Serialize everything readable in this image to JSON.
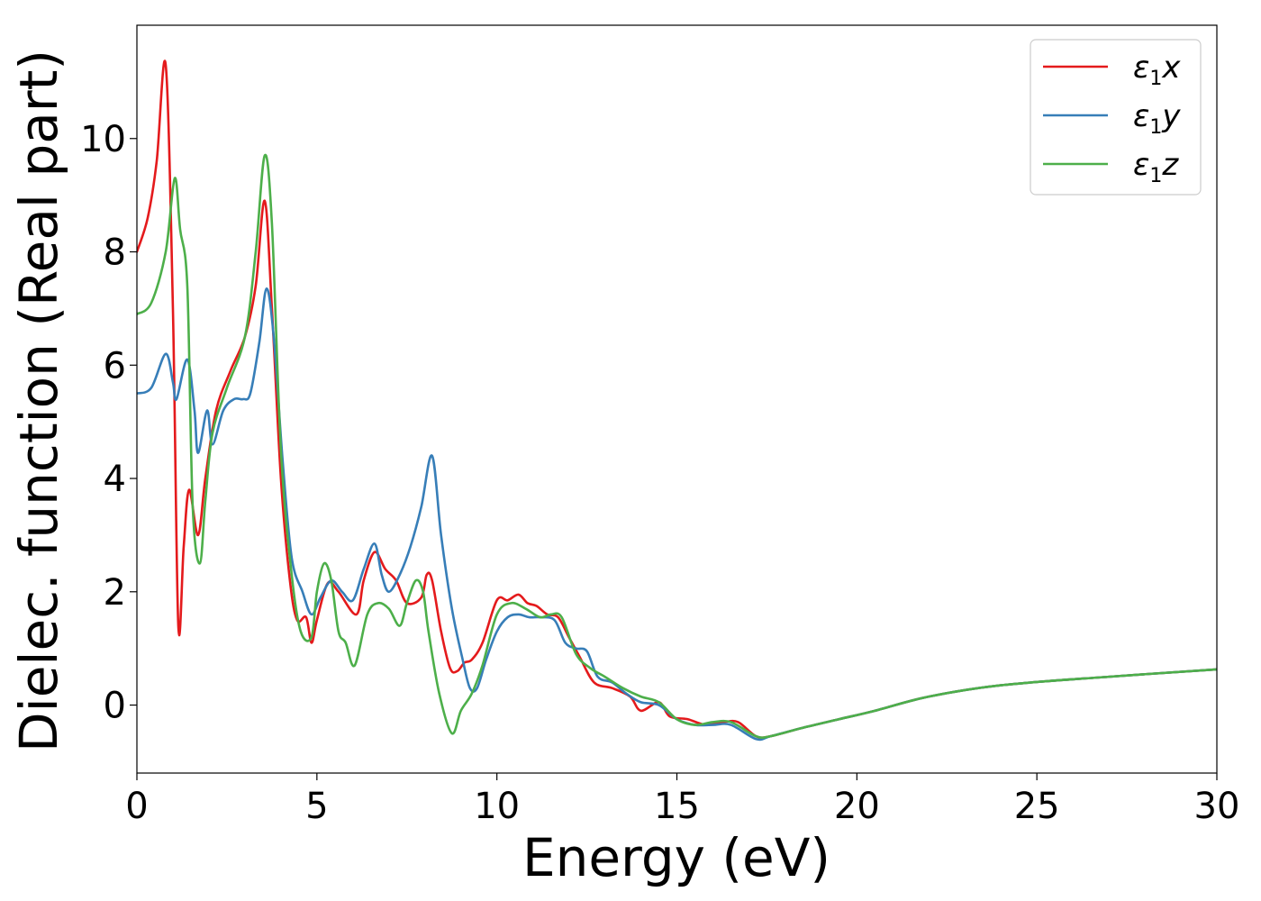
{
  "chart_data": {
    "type": "line",
    "xlabel": "Energy (eV)",
    "ylabel": "Dielec. function (Real part)",
    "xlim": [
      0,
      30
    ],
    "ylim": [
      -1.2,
      12
    ],
    "xticks": [
      "0",
      "5",
      "10",
      "15",
      "20",
      "25",
      "30"
    ],
    "yticks": [
      "0",
      "2",
      "4",
      "6",
      "8",
      "10"
    ],
    "grid": false,
    "legend_position": "top-right",
    "series": [
      {
        "name": "ε1x",
        "legend": {
          "base": "ε",
          "sub": "1",
          "var": "x"
        },
        "color": "#e41a1c",
        "x": [
          0,
          0.3,
          0.55,
          0.8,
          1.0,
          1.15,
          1.3,
          1.45,
          1.7,
          1.9,
          2.2,
          2.6,
          3.0,
          3.3,
          3.55,
          3.75,
          4.0,
          4.25,
          4.45,
          4.7,
          4.85,
          5.0,
          5.3,
          5.6,
          6.1,
          6.3,
          6.6,
          6.9,
          7.2,
          7.5,
          7.9,
          8.05,
          8.2,
          8.45,
          8.7,
          8.9,
          9.1,
          9.3,
          9.6,
          10.0,
          10.3,
          10.6,
          10.85,
          11.1,
          11.4,
          11.7,
          12.0,
          12.3,
          12.7,
          13.2,
          13.7,
          14.0,
          14.5,
          14.8,
          15.3,
          15.8,
          16.3,
          16.7,
          17.2,
          17.6,
          18.5,
          19.5,
          20.5,
          22.0,
          24.0,
          27.0,
          30.0
        ],
        "values": [
          8.0,
          8.6,
          9.6,
          11.3,
          7.0,
          1.4,
          2.8,
          3.8,
          3.0,
          4.0,
          5.2,
          5.9,
          6.5,
          7.4,
          8.9,
          7.0,
          4.0,
          2.2,
          1.5,
          1.55,
          1.1,
          1.5,
          2.15,
          2.0,
          1.6,
          2.2,
          2.7,
          2.4,
          2.2,
          1.8,
          1.9,
          2.3,
          2.2,
          1.3,
          0.65,
          0.6,
          0.75,
          0.8,
          1.1,
          1.85,
          1.85,
          1.95,
          1.8,
          1.75,
          1.6,
          1.55,
          1.2,
          0.85,
          0.4,
          0.3,
          0.15,
          -0.1,
          0.05,
          -0.2,
          -0.25,
          -0.35,
          -0.3,
          -0.3,
          -0.55,
          -0.55,
          -0.4,
          -0.25,
          -0.1,
          0.15,
          0.35,
          0.5,
          0.63
        ]
      },
      {
        "name": "ε1y",
        "legend": {
          "base": "ε",
          "sub": "1",
          "var": "y"
        },
        "color": "#377eb8",
        "x": [
          0,
          0.4,
          0.8,
          1.0,
          1.1,
          1.4,
          1.6,
          1.7,
          1.95,
          2.1,
          2.4,
          2.7,
          2.95,
          3.15,
          3.4,
          3.6,
          3.8,
          4.05,
          4.3,
          4.6,
          4.85,
          5.1,
          5.4,
          5.7,
          6.0,
          6.3,
          6.6,
          6.8,
          7.0,
          7.3,
          7.6,
          7.9,
          8.2,
          8.45,
          8.75,
          9.05,
          9.25,
          9.45,
          9.7,
          10.0,
          10.3,
          10.6,
          10.9,
          11.2,
          11.6,
          11.9,
          12.2,
          12.5,
          12.8,
          13.2,
          13.6,
          14.0,
          14.5,
          15.0,
          15.5,
          16.0,
          16.5,
          17.2,
          17.6,
          18.5,
          19.5,
          20.5,
          22.0,
          24.0,
          27.0,
          30.0
        ],
        "values": [
          5.5,
          5.6,
          6.2,
          5.7,
          5.4,
          6.1,
          5.2,
          4.45,
          5.2,
          4.6,
          5.2,
          5.4,
          5.4,
          5.5,
          6.4,
          7.35,
          6.5,
          4.3,
          2.6,
          2.0,
          1.6,
          1.9,
          2.2,
          2.0,
          1.85,
          2.4,
          2.85,
          2.3,
          2.0,
          2.3,
          2.8,
          3.5,
          4.4,
          3.0,
          1.7,
          0.8,
          0.3,
          0.3,
          0.8,
          1.3,
          1.55,
          1.6,
          1.55,
          1.55,
          1.5,
          1.1,
          1.0,
          0.95,
          0.5,
          0.4,
          0.2,
          0.05,
          0.0,
          -0.25,
          -0.35,
          -0.35,
          -0.35,
          -0.6,
          -0.55,
          -0.4,
          -0.25,
          -0.1,
          0.15,
          0.35,
          0.5,
          0.63
        ]
      },
      {
        "name": "ε1z",
        "legend": {
          "base": "ε",
          "sub": "1",
          "var": "z"
        },
        "color": "#4daf4a",
        "x": [
          0,
          0.4,
          0.8,
          1.05,
          1.2,
          1.4,
          1.55,
          1.75,
          1.9,
          2.1,
          2.5,
          3.0,
          3.3,
          3.55,
          3.75,
          4.0,
          4.3,
          4.55,
          4.85,
          5.0,
          5.2,
          5.4,
          5.6,
          5.8,
          6.05,
          6.4,
          6.7,
          7.0,
          7.3,
          7.5,
          7.75,
          7.95,
          8.1,
          8.4,
          8.75,
          9.0,
          9.3,
          9.6,
          10.0,
          10.4,
          10.8,
          11.2,
          11.5,
          11.8,
          12.2,
          12.6,
          13.0,
          13.5,
          14.0,
          14.5,
          15.0,
          15.5,
          16.0,
          16.5,
          17.2,
          17.6,
          18.5,
          19.5,
          20.5,
          22.0,
          24.0,
          27.0,
          30.0
        ],
        "values": [
          6.9,
          7.1,
          8.0,
          9.3,
          8.4,
          7.4,
          3.5,
          2.5,
          3.6,
          4.8,
          5.6,
          6.5,
          8.0,
          9.7,
          8.5,
          4.5,
          2.3,
          1.3,
          1.2,
          2.0,
          2.5,
          2.2,
          1.3,
          1.1,
          0.7,
          1.6,
          1.8,
          1.7,
          1.4,
          1.8,
          2.2,
          2.0,
          1.3,
          0.2,
          -0.5,
          -0.1,
          0.2,
          0.7,
          1.6,
          1.8,
          1.7,
          1.55,
          1.6,
          1.55,
          0.9,
          0.65,
          0.5,
          0.3,
          0.15,
          0.05,
          -0.25,
          -0.35,
          -0.3,
          -0.3,
          -0.55,
          -0.55,
          -0.4,
          -0.25,
          -0.1,
          0.15,
          0.35,
          0.5,
          0.63
        ]
      }
    ]
  }
}
